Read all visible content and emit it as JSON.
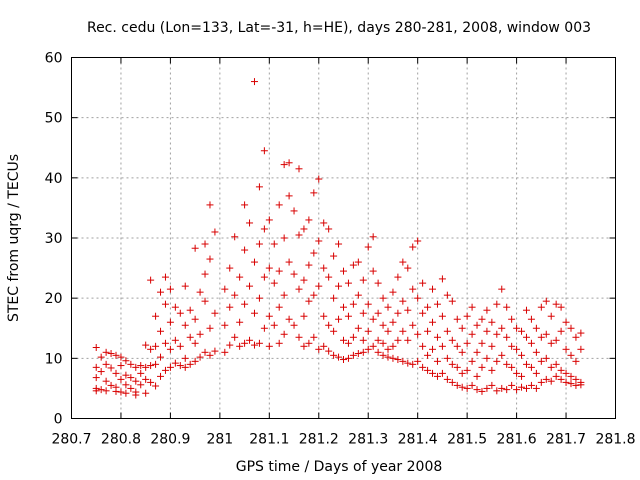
{
  "chart_data": {
    "type": "scatter",
    "title": "Rec. cedu (Lon=133, Lat=-31, h=HE), days 280-281, 2008, window 003",
    "xlabel": "GPS time / Days of year 2008",
    "ylabel": "STEC from uqrg / TECUs",
    "xlim": [
      280.7,
      281.8
    ],
    "ylim": [
      0,
      60
    ],
    "xticks": [
      "280.7",
      "280.8",
      "280.9",
      "281",
      "281.1",
      "281.2",
      "281.3",
      "281.4",
      "281.5",
      "281.6",
      "281.7",
      "281.8"
    ],
    "yticks": [
      "0",
      "10",
      "20",
      "30",
      "40",
      "50",
      "60"
    ],
    "grid": true,
    "marker": "+",
    "color": "#d80000",
    "points": [
      [
        280.75,
        11.8
      ],
      [
        280.75,
        8.5
      ],
      [
        280.75,
        6.8
      ],
      [
        280.75,
        5.0
      ],
      [
        280.75,
        4.6
      ],
      [
        280.76,
        10.2
      ],
      [
        280.76,
        7.8
      ],
      [
        280.76,
        4.8
      ],
      [
        280.77,
        11.0
      ],
      [
        280.77,
        9.0
      ],
      [
        280.77,
        6.2
      ],
      [
        280.77,
        4.6
      ],
      [
        280.78,
        10.8
      ],
      [
        280.78,
        8.4
      ],
      [
        280.78,
        5.5
      ],
      [
        280.79,
        10.5
      ],
      [
        280.79,
        7.5
      ],
      [
        280.79,
        5.2
      ],
      [
        280.79,
        4.5
      ],
      [
        280.8,
        10.2
      ],
      [
        280.8,
        8.8
      ],
      [
        280.8,
        6.5
      ],
      [
        280.8,
        4.4
      ],
      [
        280.81,
        9.6
      ],
      [
        280.81,
        7.2
      ],
      [
        280.81,
        5.6
      ],
      [
        280.81,
        4.2
      ],
      [
        280.82,
        9.0
      ],
      [
        280.82,
        6.8
      ],
      [
        280.82,
        5.0
      ],
      [
        280.83,
        8.5
      ],
      [
        280.83,
        6.2
      ],
      [
        280.83,
        4.4
      ],
      [
        280.83,
        3.9
      ],
      [
        280.84,
        8.8
      ],
      [
        280.84,
        7.5
      ],
      [
        280.84,
        5.6
      ],
      [
        280.85,
        12.2
      ],
      [
        280.85,
        8.5
      ],
      [
        280.85,
        6.5
      ],
      [
        280.85,
        4.2
      ],
      [
        280.86,
        23.0
      ],
      [
        280.86,
        11.5
      ],
      [
        280.86,
        8.8
      ],
      [
        280.86,
        6.0
      ],
      [
        280.87,
        17.0
      ],
      [
        280.87,
        12.0
      ],
      [
        280.87,
        9.0
      ],
      [
        280.87,
        5.4
      ],
      [
        280.88,
        21.0
      ],
      [
        280.88,
        14.5
      ],
      [
        280.88,
        10.2
      ],
      [
        280.88,
        7.0
      ],
      [
        280.89,
        23.5
      ],
      [
        280.89,
        19.0
      ],
      [
        280.89,
        12.5
      ],
      [
        280.89,
        8.0
      ],
      [
        280.9,
        21.5
      ],
      [
        280.9,
        16.0
      ],
      [
        280.9,
        11.5
      ],
      [
        280.9,
        8.5
      ],
      [
        280.91,
        18.5
      ],
      [
        280.91,
        13.0
      ],
      [
        280.91,
        9.2
      ],
      [
        280.92,
        17.5
      ],
      [
        280.92,
        12.0
      ],
      [
        280.92,
        8.8
      ],
      [
        280.93,
        22.0
      ],
      [
        280.93,
        15.5
      ],
      [
        280.93,
        10.0
      ],
      [
        280.93,
        8.5
      ],
      [
        280.94,
        18.0
      ],
      [
        280.94,
        13.5
      ],
      [
        280.94,
        9.0
      ],
      [
        280.95,
        28.3
      ],
      [
        280.95,
        16.5
      ],
      [
        280.95,
        12.5
      ],
      [
        280.95,
        9.5
      ],
      [
        280.96,
        21.0
      ],
      [
        280.96,
        14.0
      ],
      [
        280.96,
        10.2
      ],
      [
        280.97,
        29.0
      ],
      [
        280.97,
        24.0
      ],
      [
        280.97,
        19.5
      ],
      [
        280.97,
        11.0
      ],
      [
        280.98,
        35.5
      ],
      [
        280.98,
        26.5
      ],
      [
        280.98,
        15.0
      ],
      [
        280.98,
        10.5
      ],
      [
        280.99,
        31.0
      ],
      [
        280.99,
        17.5
      ],
      [
        280.99,
        11.2
      ],
      [
        281.01,
        21.5
      ],
      [
        281.01,
        15.5
      ],
      [
        281.01,
        11.0
      ],
      [
        281.02,
        25.0
      ],
      [
        281.02,
        18.5
      ],
      [
        281.02,
        12.2
      ],
      [
        281.03,
        30.2
      ],
      [
        281.03,
        20.5
      ],
      [
        281.03,
        13.5
      ],
      [
        281.04,
        23.5
      ],
      [
        281.04,
        16.0
      ],
      [
        281.04,
        12.0
      ],
      [
        281.05,
        35.5
      ],
      [
        281.05,
        28.0
      ],
      [
        281.05,
        19.0
      ],
      [
        281.05,
        12.5
      ],
      [
        281.06,
        32.5
      ],
      [
        281.06,
        22.0
      ],
      [
        281.06,
        13.0
      ],
      [
        281.07,
        56.0
      ],
      [
        281.07,
        26.0
      ],
      [
        281.07,
        17.5
      ],
      [
        281.07,
        12.2
      ],
      [
        281.08,
        38.5
      ],
      [
        281.08,
        29.0
      ],
      [
        281.08,
        20.0
      ],
      [
        281.08,
        12.5
      ],
      [
        281.09,
        44.5
      ],
      [
        281.09,
        31.5
      ],
      [
        281.09,
        23.5
      ],
      [
        281.09,
        15.0
      ],
      [
        281.1,
        33.0
      ],
      [
        281.1,
        25.0
      ],
      [
        281.1,
        17.0
      ],
      [
        281.1,
        12.0
      ],
      [
        281.11,
        29.0
      ],
      [
        281.11,
        22.5
      ],
      [
        281.11,
        15.5
      ],
      [
        281.12,
        35.5
      ],
      [
        281.12,
        24.5
      ],
      [
        281.12,
        18.5
      ],
      [
        281.12,
        12.5
      ],
      [
        281.13,
        42.2
      ],
      [
        281.13,
        30.0
      ],
      [
        281.13,
        20.5
      ],
      [
        281.13,
        14.0
      ],
      [
        281.14,
        42.5
      ],
      [
        281.14,
        37.0
      ],
      [
        281.14,
        26.0
      ],
      [
        281.14,
        16.5
      ],
      [
        281.15,
        34.5
      ],
      [
        281.15,
        24.0
      ],
      [
        281.15,
        15.5
      ],
      [
        281.16,
        41.5
      ],
      [
        281.16,
        30.5
      ],
      [
        281.16,
        21.5
      ],
      [
        281.16,
        13.5
      ],
      [
        281.17,
        31.5
      ],
      [
        281.17,
        23.0
      ],
      [
        281.17,
        17.0
      ],
      [
        281.17,
        12.0
      ],
      [
        281.18,
        33.0
      ],
      [
        281.18,
        25.5
      ],
      [
        281.18,
        19.5
      ],
      [
        281.18,
        12.5
      ],
      [
        281.19,
        37.5
      ],
      [
        281.19,
        27.5
      ],
      [
        281.19,
        20.5
      ],
      [
        281.19,
        13.5
      ],
      [
        281.2,
        39.8
      ],
      [
        281.2,
        29.5
      ],
      [
        281.2,
        22.0
      ],
      [
        281.2,
        11.5
      ],
      [
        281.21,
        32.5
      ],
      [
        281.21,
        25.0
      ],
      [
        281.21,
        17.0
      ],
      [
        281.21,
        12.0
      ],
      [
        281.22,
        31.5
      ],
      [
        281.22,
        23.5
      ],
      [
        281.22,
        15.5
      ],
      [
        281.22,
        11.2
      ],
      [
        281.23,
        27.0
      ],
      [
        281.23,
        20.0
      ],
      [
        281.23,
        14.5
      ],
      [
        281.23,
        10.5
      ],
      [
        281.24,
        29.0
      ],
      [
        281.24,
        22.0
      ],
      [
        281.24,
        16.5
      ],
      [
        281.24,
        10.2
      ],
      [
        281.25,
        24.5
      ],
      [
        281.25,
        18.5
      ],
      [
        281.25,
        13.0
      ],
      [
        281.25,
        9.8
      ],
      [
        281.26,
        22.5
      ],
      [
        281.26,
        17.0
      ],
      [
        281.26,
        12.5
      ],
      [
        281.26,
        10.0
      ],
      [
        281.27,
        25.5
      ],
      [
        281.27,
        19.0
      ],
      [
        281.27,
        13.5
      ],
      [
        281.27,
        10.5
      ],
      [
        281.28,
        26.0
      ],
      [
        281.28,
        20.5
      ],
      [
        281.28,
        15.0
      ],
      [
        281.28,
        10.8
      ],
      [
        281.29,
        23.0
      ],
      [
        281.29,
        17.5
      ],
      [
        281.29,
        13.0
      ],
      [
        281.29,
        11.0
      ],
      [
        281.3,
        28.5
      ],
      [
        281.3,
        19.0
      ],
      [
        281.3,
        14.5
      ],
      [
        281.3,
        11.5
      ],
      [
        281.31,
        30.2
      ],
      [
        281.31,
        24.5
      ],
      [
        281.31,
        16.5
      ],
      [
        281.31,
        12.0
      ],
      [
        281.32,
        22.5
      ],
      [
        281.32,
        17.5
      ],
      [
        281.32,
        13.0
      ],
      [
        281.32,
        11.0
      ],
      [
        281.33,
        20.0
      ],
      [
        281.33,
        15.5
      ],
      [
        281.33,
        12.5
      ],
      [
        281.33,
        10.5
      ],
      [
        281.34,
        18.5
      ],
      [
        281.34,
        14.5
      ],
      [
        281.34,
        11.5
      ],
      [
        281.34,
        10.2
      ],
      [
        281.35,
        21.0
      ],
      [
        281.35,
        16.0
      ],
      [
        281.35,
        12.0
      ],
      [
        281.35,
        10.0
      ],
      [
        281.36,
        23.5
      ],
      [
        281.36,
        17.5
      ],
      [
        281.36,
        13.0
      ],
      [
        281.36,
        9.8
      ],
      [
        281.37,
        26.0
      ],
      [
        281.37,
        19.5
      ],
      [
        281.37,
        14.5
      ],
      [
        281.37,
        9.5
      ],
      [
        281.38,
        25.0
      ],
      [
        281.38,
        18.0
      ],
      [
        281.38,
        13.0
      ],
      [
        281.38,
        9.2
      ],
      [
        281.39,
        28.5
      ],
      [
        281.39,
        21.5
      ],
      [
        281.39,
        15.5
      ],
      [
        281.39,
        9.0
      ],
      [
        281.4,
        29.5
      ],
      [
        281.4,
        20.0
      ],
      [
        281.4,
        14.0
      ],
      [
        281.4,
        9.5
      ],
      [
        281.41,
        22.5
      ],
      [
        281.41,
        17.5
      ],
      [
        281.41,
        12.0
      ],
      [
        281.41,
        8.5
      ],
      [
        281.42,
        18.5
      ],
      [
        281.42,
        14.5
      ],
      [
        281.42,
        10.5
      ],
      [
        281.42,
        8.0
      ],
      [
        281.43,
        21.5
      ],
      [
        281.43,
        16.0
      ],
      [
        281.43,
        11.5
      ],
      [
        281.43,
        7.5
      ],
      [
        281.44,
        19.0
      ],
      [
        281.44,
        13.5
      ],
      [
        281.44,
        9.5
      ],
      [
        281.44,
        7.0
      ],
      [
        281.45,
        23.2
      ],
      [
        281.45,
        17.0
      ],
      [
        281.45,
        12.0
      ],
      [
        281.45,
        7.5
      ],
      [
        281.46,
        20.5
      ],
      [
        281.46,
        14.5
      ],
      [
        281.46,
        10.0
      ],
      [
        281.46,
        6.5
      ],
      [
        281.47,
        19.5
      ],
      [
        281.47,
        13.0
      ],
      [
        281.47,
        9.0
      ],
      [
        281.47,
        6.0
      ],
      [
        281.48,
        16.5
      ],
      [
        281.48,
        12.0
      ],
      [
        281.48,
        8.5
      ],
      [
        281.48,
        5.5
      ],
      [
        281.49,
        15.0
      ],
      [
        281.49,
        11.0
      ],
      [
        281.49,
        7.5
      ],
      [
        281.49,
        5.2
      ],
      [
        281.5,
        17.0
      ],
      [
        281.5,
        12.5
      ],
      [
        281.5,
        8.0
      ],
      [
        281.5,
        5.0
      ],
      [
        281.51,
        18.5
      ],
      [
        281.51,
        14.0
      ],
      [
        281.51,
        9.5
      ],
      [
        281.51,
        5.5
      ],
      [
        281.52,
        15.5
      ],
      [
        281.52,
        11.0
      ],
      [
        281.52,
        7.0
      ],
      [
        281.52,
        4.8
      ],
      [
        281.53,
        16.5
      ],
      [
        281.53,
        12.5
      ],
      [
        281.53,
        8.5
      ],
      [
        281.53,
        4.5
      ],
      [
        281.54,
        18.0
      ],
      [
        281.54,
        14.5
      ],
      [
        281.54,
        10.0
      ],
      [
        281.54,
        5.0
      ],
      [
        281.55,
        16.0
      ],
      [
        281.55,
        12.0
      ],
      [
        281.55,
        8.0
      ],
      [
        281.55,
        5.5
      ],
      [
        281.56,
        19.0
      ],
      [
        281.56,
        14.0
      ],
      [
        281.56,
        9.5
      ],
      [
        281.56,
        4.6
      ],
      [
        281.57,
        21.5
      ],
      [
        281.57,
        15.0
      ],
      [
        281.57,
        10.5
      ],
      [
        281.57,
        5.0
      ],
      [
        281.58,
        18.5
      ],
      [
        281.58,
        13.5
      ],
      [
        281.58,
        9.0
      ],
      [
        281.58,
        4.8
      ],
      [
        281.59,
        16.5
      ],
      [
        281.59,
        12.0
      ],
      [
        281.59,
        8.5
      ],
      [
        281.59,
        5.5
      ],
      [
        281.6,
        15.0
      ],
      [
        281.6,
        11.5
      ],
      [
        281.6,
        7.5
      ],
      [
        281.6,
        4.8
      ],
      [
        281.61,
        14.5
      ],
      [
        281.61,
        10.5
      ],
      [
        281.61,
        7.0
      ],
      [
        281.61,
        5.2
      ],
      [
        281.62,
        18.0
      ],
      [
        281.62,
        13.5
      ],
      [
        281.62,
        9.0
      ],
      [
        281.62,
        5.0
      ],
      [
        281.63,
        16.5
      ],
      [
        281.63,
        12.5
      ],
      [
        281.63,
        8.5
      ],
      [
        281.63,
        5.5
      ],
      [
        281.64,
        15.0
      ],
      [
        281.64,
        11.0
      ],
      [
        281.64,
        7.5
      ],
      [
        281.64,
        5.0
      ],
      [
        281.65,
        18.5
      ],
      [
        281.65,
        13.5
      ],
      [
        281.65,
        9.5
      ],
      [
        281.65,
        6.0
      ],
      [
        281.66,
        19.5
      ],
      [
        281.66,
        14.0
      ],
      [
        281.66,
        10.0
      ],
      [
        281.66,
        6.5
      ],
      [
        281.67,
        17.0
      ],
      [
        281.67,
        12.5
      ],
      [
        281.67,
        8.5
      ],
      [
        281.67,
        6.2
      ],
      [
        281.68,
        19.0
      ],
      [
        281.68,
        13.0
      ],
      [
        281.68,
        9.0
      ],
      [
        281.68,
        7.0
      ],
      [
        281.69,
        18.5
      ],
      [
        281.69,
        14.5
      ],
      [
        281.69,
        8.0
      ],
      [
        281.69,
        6.5
      ],
      [
        281.7,
        16.0
      ],
      [
        281.7,
        11.5
      ],
      [
        281.7,
        7.5
      ],
      [
        281.7,
        6.0
      ],
      [
        281.71,
        15.0
      ],
      [
        281.71,
        10.5
      ],
      [
        281.71,
        7.0
      ],
      [
        281.71,
        5.8
      ],
      [
        281.72,
        13.5
      ],
      [
        281.72,
        9.5
      ],
      [
        281.72,
        6.5
      ],
      [
        281.72,
        5.5
      ],
      [
        281.73,
        14.2
      ],
      [
        281.73,
        11.5
      ],
      [
        281.73,
        6.0
      ],
      [
        281.73,
        5.6
      ]
    ]
  }
}
